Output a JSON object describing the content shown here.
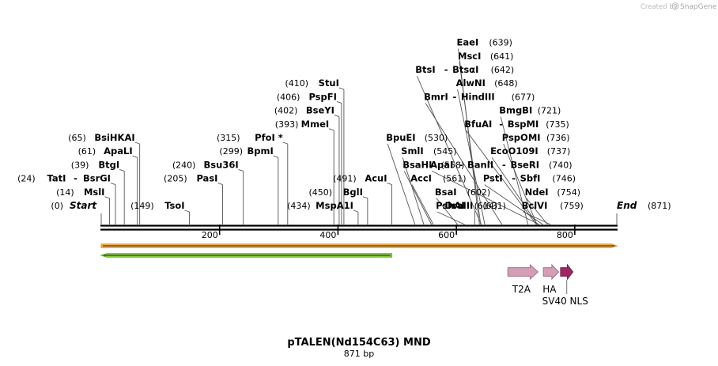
{
  "credit": {
    "prefix": "Created by",
    "brand": "SnapGene"
  },
  "map": {
    "title": "pTALEN(Nd154C63) MND",
    "length_label": "871 bp",
    "length_bp": 871,
    "ticks": [
      {
        "bp": 200,
        "label": "200"
      },
      {
        "bp": 400,
        "label": "400"
      },
      {
        "bp": 600,
        "label": "600"
      },
      {
        "bp": 800,
        "label": "800"
      }
    ],
    "start": {
      "name": "Start",
      "pos": "(0)",
      "bp": 0
    },
    "end": {
      "name": "End",
      "pos": "(871)",
      "bp": 871
    },
    "sites": [
      {
        "names": [
          "MslI"
        ],
        "pos": "(14)",
        "bp": 14,
        "label_side": "left",
        "row": 1
      },
      {
        "names": [
          "TatI",
          "BsrGI"
        ],
        "pos": "(24)",
        "bp": 24,
        "label_side": "left",
        "row": 2
      },
      {
        "names": [
          "BtgI"
        ],
        "pos": "(39)",
        "bp": 39,
        "label_side": "left",
        "row": 3
      },
      {
        "names": [
          "ApaLI"
        ],
        "pos": "(61)",
        "bp": 61,
        "label_side": "left",
        "row": 4
      },
      {
        "names": [
          "BsiHKAI"
        ],
        "pos": "(65)",
        "bp": 65,
        "label_side": "left",
        "row": 5
      },
      {
        "names": [
          "TsoI"
        ],
        "pos": "(149)",
        "bp": 149,
        "label_side": "left",
        "row": 0
      },
      {
        "names": [
          "PasI"
        ],
        "pos": "(205)",
        "bp": 205,
        "label_side": "left",
        "row": 2
      },
      {
        "names": [
          "Bsu36I"
        ],
        "pos": "(240)",
        "bp": 240,
        "label_side": "left",
        "row": 3
      },
      {
        "names": [
          "BpmI"
        ],
        "pos": "(299)",
        "bp": 299,
        "label_side": "left",
        "row": 4
      },
      {
        "names": [
          "PfoI *"
        ],
        "pos": "(315)",
        "bp": 315,
        "label_side": "left",
        "row": 5
      },
      {
        "names": [
          "MmeI"
        ],
        "pos": "(393)",
        "bp": 393,
        "label_side": "left",
        "row": 6
      },
      {
        "names": [
          "BseYI"
        ],
        "pos": "(402)",
        "bp": 402,
        "label_side": "left",
        "row": 7
      },
      {
        "names": [
          "PspFI"
        ],
        "pos": "(406)",
        "bp": 406,
        "label_side": "left",
        "row": 8
      },
      {
        "names": [
          "StuI"
        ],
        "pos": "(410)",
        "bp": 410,
        "label_side": "left",
        "row": 9
      },
      {
        "names": [
          "MspA1I"
        ],
        "pos": "(434)",
        "bp": 434,
        "label_side": "left",
        "row": 0
      },
      {
        "names": [
          "BglI"
        ],
        "pos": "(450)",
        "bp": 450,
        "label_side": "left",
        "row": 1
      },
      {
        "names": [
          "AcuI"
        ],
        "pos": "(491)",
        "bp": 491,
        "label_side": "left",
        "row": 2
      },
      {
        "names": [
          "BpuEI"
        ],
        "pos": "(530)",
        "bp": 530,
        "label_side": "right",
        "row": 5
      },
      {
        "names": [
          "SmlI"
        ],
        "pos": "(545)",
        "bp": 545,
        "label_side": "right",
        "row": 4
      },
      {
        "names": [
          "BsaHI"
        ],
        "pos": "(558)",
        "bp": 558,
        "label_side": "right",
        "row": 3
      },
      {
        "names": [
          "AccI"
        ],
        "pos": "(561)",
        "bp": 561,
        "label_side": "right",
        "row": 2
      },
      {
        "names": [
          "BsaI"
        ],
        "pos": "(602)",
        "bp": 602,
        "label_side": "right",
        "row": 1
      },
      {
        "names": [
          "PshAI"
        ],
        "pos": "(614)",
        "bp": 614,
        "label_side": "right",
        "row": 0
      },
      {
        "names": [
          "DraIII"
        ],
        "pos": "(631)",
        "bp": 631,
        "label_side": "right",
        "row": -1
      },
      {
        "names": [
          "EaeI"
        ],
        "pos": "(639)",
        "bp": 639,
        "label_side": "right",
        "row": 12
      },
      {
        "names": [
          "MscI"
        ],
        "pos": "(641)",
        "bp": 641,
        "label_side": "right",
        "row": 11
      },
      {
        "names": [
          "BtsI",
          "BtsαI"
        ],
        "pos": "(642)",
        "bp": 642,
        "label_side": "right",
        "row": 10
      },
      {
        "names": [
          "AlwNI"
        ],
        "pos": "(648)",
        "bp": 648,
        "label_side": "right",
        "row": 9
      },
      {
        "names": [
          "BmrI",
          "HindIII"
        ],
        "pos": "(677)",
        "bp": 677,
        "label_side": "right",
        "row": 8
      },
      {
        "names": [
          "BmgBI"
        ],
        "pos": "(721)",
        "bp": 721,
        "label_side": "right",
        "row": 7
      },
      {
        "names": [
          "BfuAI",
          "BspMI"
        ],
        "pos": "(735)",
        "bp": 735,
        "label_side": "right",
        "row": 6
      },
      {
        "names": [
          "PspOMI"
        ],
        "pos": "(736)",
        "bp": 736,
        "label_side": "right",
        "row": 5
      },
      {
        "names": [
          "EcoO109I"
        ],
        "pos": "(737)",
        "bp": 737,
        "label_side": "right",
        "row": 4
      },
      {
        "names": [
          "ApaI",
          "BanII",
          "BseRI"
        ],
        "pos": "(740)",
        "bp": 740,
        "label_side": "right",
        "row": 3
      },
      {
        "names": [
          "PstI",
          "SbfI"
        ],
        "pos": "(746)",
        "bp": 746,
        "label_side": "right",
        "row": 2
      },
      {
        "names": [
          "NdeI"
        ],
        "pos": "(754)",
        "bp": 754,
        "label_side": "right",
        "row": 1
      },
      {
        "names": [
          "BclVI"
        ],
        "pos": "(759)",
        "bp": 759,
        "label_side": "right",
        "row": 0
      }
    ],
    "features": [
      {
        "name": "orange-feature",
        "start_bp": 0,
        "end_bp": 871,
        "direction": "forward",
        "color": "#f5b246",
        "border": "#d8902a"
      },
      {
        "name": "green-feature",
        "start_bp": 0,
        "end_bp": 491,
        "direction": "reverse",
        "color": "#8fd24a",
        "border": "#5fae22"
      }
    ],
    "small_features": [
      {
        "label": "T2A",
        "start_bp": 687,
        "end_bp": 738,
        "color": "#d49fb6",
        "border": "#a86f8c"
      },
      {
        "label": "HA",
        "start_bp": 747,
        "end_bp": 773,
        "color": "#d49fb6",
        "border": "#a86f8c"
      },
      {
        "label": "SV40 NLS",
        "start_bp": 776,
        "end_bp": 797,
        "color": "#9b2a62",
        "border": "#7a1c4a"
      }
    ]
  }
}
